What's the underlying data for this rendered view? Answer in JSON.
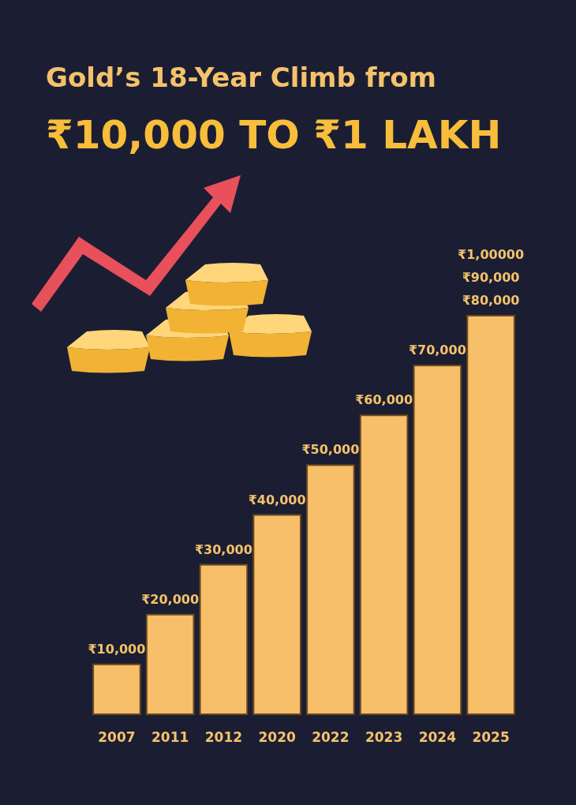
{
  "chart_data": {
    "type": "bar",
    "title": "Gold’s 18-Year Climb from",
    "subtitle": "₹10,000 TO ₹1 LAKH",
    "categories": [
      "2007",
      "2011",
      "2012",
      "2020",
      "2022",
      "2023",
      "2024",
      "2025"
    ],
    "values": [
      10000,
      20000,
      30000,
      40000,
      50000,
      60000,
      70000,
      80000
    ],
    "value_labels": [
      "₹10,000",
      "₹20,000",
      "₹30,000",
      "₹40,000",
      "₹50,000",
      "₹60,000",
      "₹70,000",
      "₹80,000"
    ],
    "annotations": [
      "₹1,00000",
      "₹90,000"
    ],
    "color": "#f8bf6a"
  }
}
